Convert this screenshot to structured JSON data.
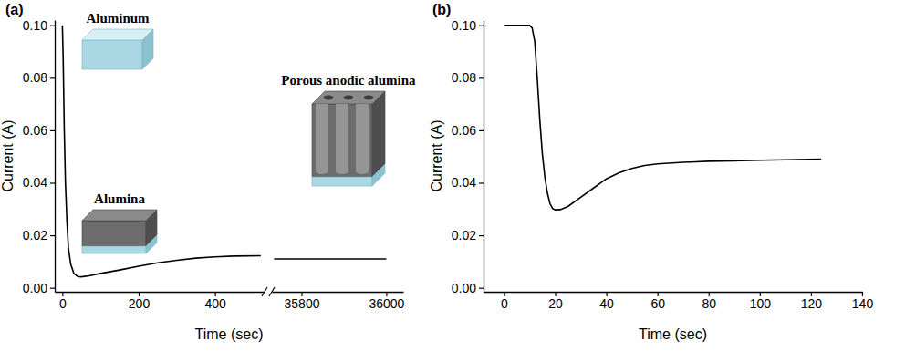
{
  "chart_data": [
    {
      "type": "line",
      "title": "(a)",
      "x_label": "Time (sec)",
      "y_label": "Current (A)",
      "annotations": [
        "Aluminum",
        "Alumina",
        "Porous anodic alumina"
      ],
      "x": [
        0,
        2,
        5,
        8,
        12,
        16,
        22,
        30,
        40,
        50,
        70,
        100,
        150,
        200,
        250,
        300,
        350,
        400,
        450,
        520
      ],
      "values": [
        0.1,
        0.088,
        0.06,
        0.04,
        0.025,
        0.015,
        0.009,
        0.0055,
        0.0043,
        0.0042,
        0.0046,
        0.0055,
        0.0068,
        0.0082,
        0.0095,
        0.0105,
        0.0113,
        0.0118,
        0.0121,
        0.0122
      ],
      "color": "#000000",
      "xlim": [
        -20,
        530
      ],
      "xticks": [
        0,
        200,
        400
      ],
      "ylim": [
        -0.0015,
        0.102
      ],
      "yticks": [
        {
          "value": 0,
          "label": "0.00"
        },
        {
          "value": 0.02,
          "label": "0.02"
        },
        {
          "value": 0.04,
          "label": "0.04"
        },
        {
          "value": 0.06,
          "label": "0.06"
        },
        {
          "value": 0.08,
          "label": "0.08"
        },
        {
          "value": 0.1,
          "label": "0.10"
        }
      ]
    },
    {
      "type": "line",
      "x": [
        35735,
        35800,
        35900,
        36000
      ],
      "values": [
        0.011,
        0.011,
        0.011,
        0.011
      ],
      "color": "#000000",
      "xlim": [
        35730,
        36040
      ],
      "xticks": [
        35800,
        36000
      ],
      "ylim": [
        -0.0015,
        0.102
      ],
      "tick_labels": "x"
    },
    {
      "type": "line",
      "title": "(b)",
      "x_label": "Time (sec)",
      "y_label": "Current (A)",
      "x": [
        0,
        10,
        11,
        12,
        13,
        14,
        15,
        16,
        17,
        18,
        19,
        20,
        22,
        25,
        30,
        35,
        40,
        45,
        50,
        55,
        60,
        70,
        80,
        90,
        100,
        110,
        124
      ],
      "values": [
        0.1,
        0.1,
        0.099,
        0.094,
        0.08,
        0.064,
        0.051,
        0.042,
        0.036,
        0.032,
        0.0302,
        0.0297,
        0.0298,
        0.031,
        0.0345,
        0.038,
        0.0415,
        0.0438,
        0.0455,
        0.0466,
        0.0472,
        0.0478,
        0.0482,
        0.0484,
        0.0486,
        0.0488,
        0.049
      ],
      "color": "#000000",
      "xlim": [
        -8,
        140
      ],
      "xticks": [
        0,
        20,
        40,
        60,
        80,
        100,
        120,
        140
      ],
      "ylim": [
        -0.0015,
        0.102
      ],
      "yticks": [
        {
          "value": 0,
          "label": "0.00"
        },
        {
          "value": 0.02,
          "label": "0.02"
        },
        {
          "value": 0.04,
          "label": "0.04"
        },
        {
          "value": 0.06,
          "label": "0.06"
        },
        {
          "value": 0.08,
          "label": "0.08"
        },
        {
          "value": 0.1,
          "label": "0.10"
        }
      ]
    }
  ]
}
